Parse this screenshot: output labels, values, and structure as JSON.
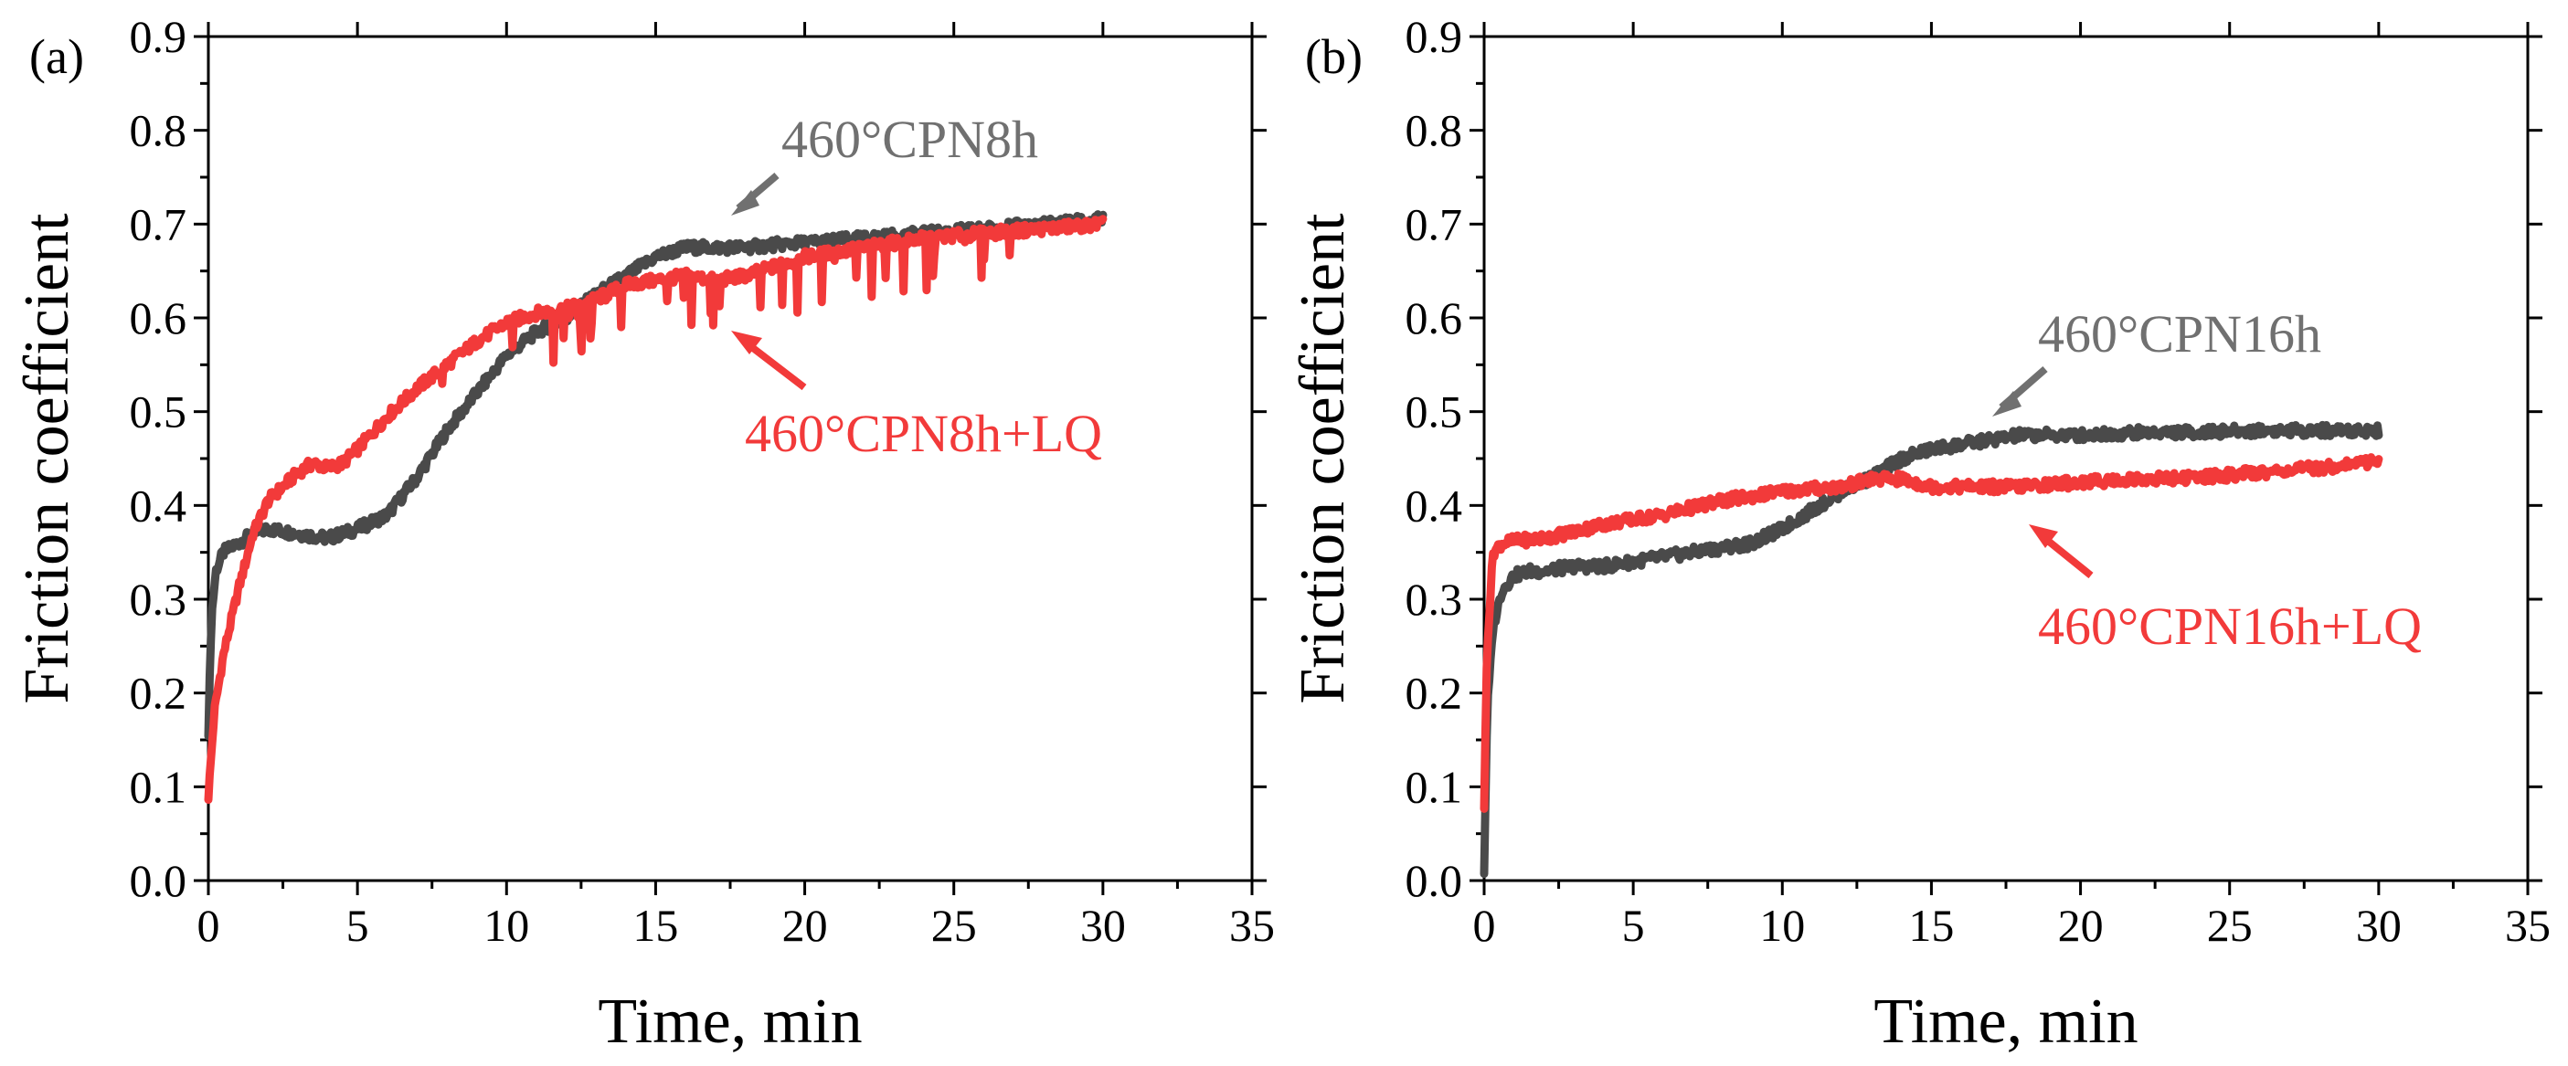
{
  "colors": {
    "gray": "#4a4a4a",
    "red": "#f23a3a",
    "anno_gray": "#707070"
  },
  "chart_data": [
    {
      "type": "line",
      "panel_label": "(a)",
      "xlabel": "Time, min",
      "ylabel": "Friction coefficient",
      "xlim": [
        0,
        35
      ],
      "ylim": [
        0,
        0.9
      ],
      "xticks": [
        "0",
        "5",
        "10",
        "15",
        "20",
        "25",
        "30",
        "35"
      ],
      "yticks": [
        "0.0",
        "0.1",
        "0.2",
        "0.3",
        "0.4",
        "0.5",
        "0.6",
        "0.7",
        "0.8",
        "0.9"
      ],
      "series": [
        {
          "name": "460°CPN8h",
          "color": "#4a4a4a",
          "x": [
            0,
            0.1,
            0.25,
            0.5,
            1,
            1.5,
            2,
            3,
            4,
            4.5,
            5,
            6,
            7,
            8,
            9,
            10,
            11,
            12,
            13,
            14,
            15,
            16,
            17,
            18,
            19,
            20,
            22,
            24,
            26,
            28,
            30
          ],
          "y": [
            0.16,
            0.28,
            0.33,
            0.35,
            0.36,
            0.37,
            0.375,
            0.37,
            0.365,
            0.37,
            0.375,
            0.39,
            0.43,
            0.48,
            0.52,
            0.56,
            0.585,
            0.6,
            0.625,
            0.645,
            0.665,
            0.675,
            0.675,
            0.675,
            0.678,
            0.68,
            0.685,
            0.69,
            0.695,
            0.7,
            0.705
          ]
        },
        {
          "name": "460°CPN8h+LQ",
          "color": "#f23a3a",
          "x": [
            0,
            0.2,
            0.5,
            1,
            1.5,
            2,
            3,
            3.5,
            4,
            4.5,
            5,
            6,
            7,
            8,
            9,
            10,
            11,
            12,
            13,
            14,
            15,
            16,
            17,
            18,
            19,
            20,
            22,
            24,
            26,
            28,
            30
          ],
          "y": [
            0.09,
            0.18,
            0.24,
            0.31,
            0.37,
            0.405,
            0.435,
            0.445,
            0.44,
            0.445,
            0.46,
            0.495,
            0.525,
            0.55,
            0.575,
            0.595,
            0.605,
            0.61,
            0.62,
            0.635,
            0.64,
            0.645,
            0.64,
            0.645,
            0.655,
            0.665,
            0.675,
            0.685,
            0.69,
            0.695,
            0.7
          ]
        }
      ],
      "annotations": [
        {
          "text": "460°CPN8h",
          "color": "#707070"
        },
        {
          "text": "460°CPN8h+LQ",
          "color": "#f23a3a"
        }
      ]
    },
    {
      "type": "line",
      "panel_label": "(b)",
      "xlabel": "Time, min",
      "ylabel": "Friction coefficient",
      "xlim": [
        0,
        35
      ],
      "ylim": [
        0,
        0.9
      ],
      "xticks": [
        "0",
        "5",
        "10",
        "15",
        "20",
        "25",
        "30",
        "35"
      ],
      "yticks": [
        "0.0",
        "0.1",
        "0.2",
        "0.3",
        "0.4",
        "0.5",
        "0.6",
        "0.7",
        "0.8",
        "0.9"
      ],
      "series": [
        {
          "name": "460°CPN16h",
          "color": "#4a4a4a",
          "x": [
            0,
            0.1,
            0.3,
            0.6,
            1,
            1.5,
            2,
            3,
            4,
            5,
            6,
            7,
            8,
            9,
            10,
            11,
            12,
            13,
            14,
            15,
            16,
            17,
            18,
            20,
            22,
            24,
            26,
            28,
            30
          ],
          "y": [
            0.01,
            0.18,
            0.27,
            0.31,
            0.325,
            0.33,
            0.33,
            0.335,
            0.335,
            0.34,
            0.345,
            0.35,
            0.355,
            0.36,
            0.375,
            0.395,
            0.415,
            0.43,
            0.45,
            0.46,
            0.465,
            0.47,
            0.475,
            0.475,
            0.478,
            0.478,
            0.48,
            0.48,
            0.48
          ]
        },
        {
          "name": "460°CPN16h+LQ",
          "color": "#f23a3a",
          "x": [
            0,
            0.1,
            0.3,
            0.6,
            1,
            2,
            3,
            4,
            5,
            6,
            7,
            8,
            9,
            10,
            11,
            12,
            13,
            14,
            15,
            16,
            17,
            18,
            20,
            22,
            24,
            26,
            28,
            30
          ],
          "y": [
            0.08,
            0.25,
            0.35,
            0.36,
            0.362,
            0.365,
            0.372,
            0.38,
            0.385,
            0.39,
            0.398,
            0.405,
            0.41,
            0.415,
            0.418,
            0.42,
            0.428,
            0.428,
            0.42,
            0.42,
            0.42,
            0.42,
            0.425,
            0.428,
            0.43,
            0.435,
            0.44,
            0.448
          ]
        }
      ],
      "annotations": [
        {
          "text": "460°CPN16h",
          "color": "#707070"
        },
        {
          "text": "460°CPN16h+LQ",
          "color": "#f23a3a"
        }
      ]
    }
  ]
}
